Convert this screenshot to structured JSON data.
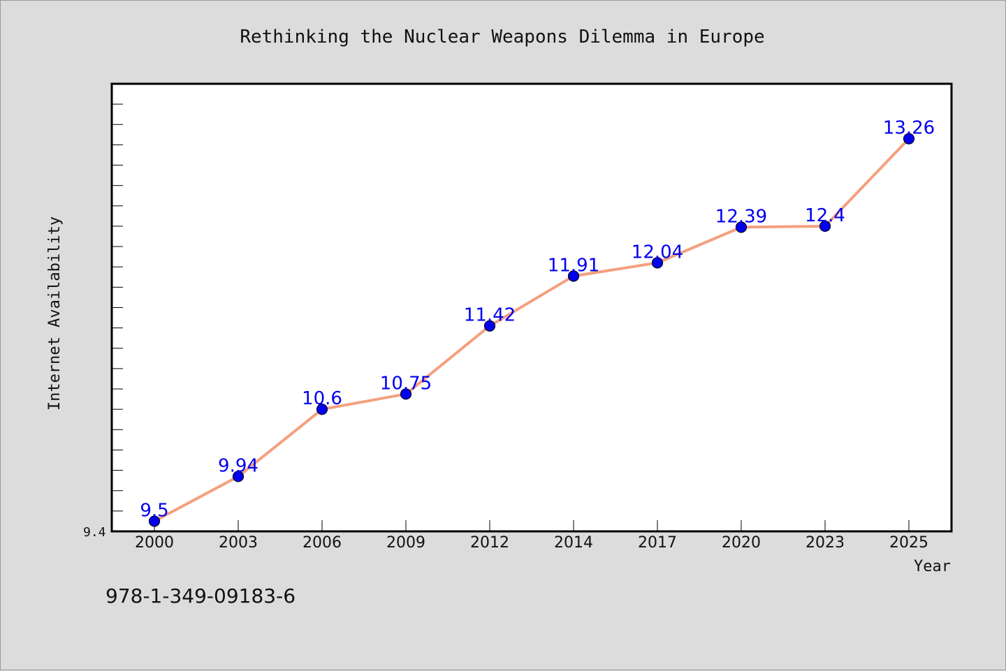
{
  "chart_data": {
    "type": "line",
    "title": "Rethinking the Nuclear Weapons Dilemma in Europe",
    "xlabel": "Year",
    "ylabel": "Internet Availability",
    "categories": [
      "2000",
      "2003",
      "2006",
      "2009",
      "2012",
      "2014",
      "2017",
      "2020",
      "2023",
      "2025"
    ],
    "values": [
      9.5,
      9.94,
      10.6,
      10.75,
      11.42,
      11.91,
      12.04,
      12.39,
      12.4,
      13.26
    ],
    "data_labels": [
      "9.5",
      "9.94",
      "10.6",
      "10.75",
      "11.42",
      "11.91",
      "12.04",
      "12.39",
      "12.4",
      "13.26"
    ],
    "ylim": [
      9.4,
      13.8
    ],
    "y_min_label": "9.4",
    "grid": false,
    "line_color": "#f4a07f",
    "marker_color": "#0000ee",
    "label_color": "#0000ee"
  },
  "footnote": "978-1-349-09183-6"
}
